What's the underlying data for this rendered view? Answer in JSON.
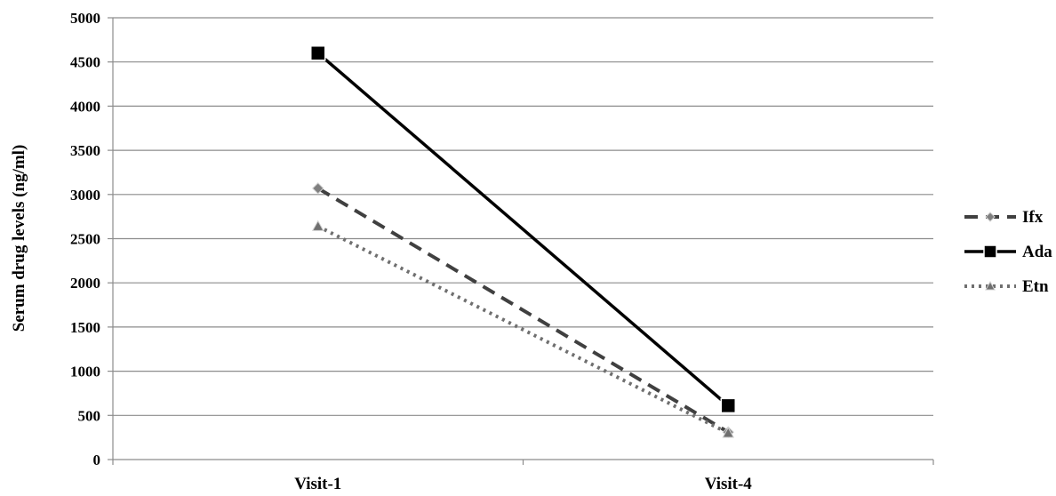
{
  "chart_data": {
    "type": "line",
    "title": "",
    "xlabel": "",
    "ylabel": "Serum drug levels (ng/ml)",
    "categories": [
      "Visit-1",
      "Visit-4"
    ],
    "ylim": [
      0,
      5000
    ],
    "yticks": [
      0,
      500,
      1000,
      1500,
      2000,
      2500,
      3000,
      3500,
      4000,
      4500,
      5000
    ],
    "grid": true,
    "legend_position": "right",
    "series": [
      {
        "name": "Ifx",
        "values": [
          3070,
          310
        ],
        "color": "#404040",
        "line_style": "dashed",
        "marker": "diamond",
        "marker_color": "#7f7f7f"
      },
      {
        "name": "Ada",
        "values": [
          4600,
          610
        ],
        "color": "#000000",
        "line_style": "solid",
        "marker": "square",
        "marker_color": "#000000"
      },
      {
        "name": "Etn",
        "values": [
          2640,
          300
        ],
        "color": "#6f6f6f",
        "line_style": "dotted",
        "marker": "triangle",
        "marker_color": "#6f6f6f"
      }
    ]
  }
}
